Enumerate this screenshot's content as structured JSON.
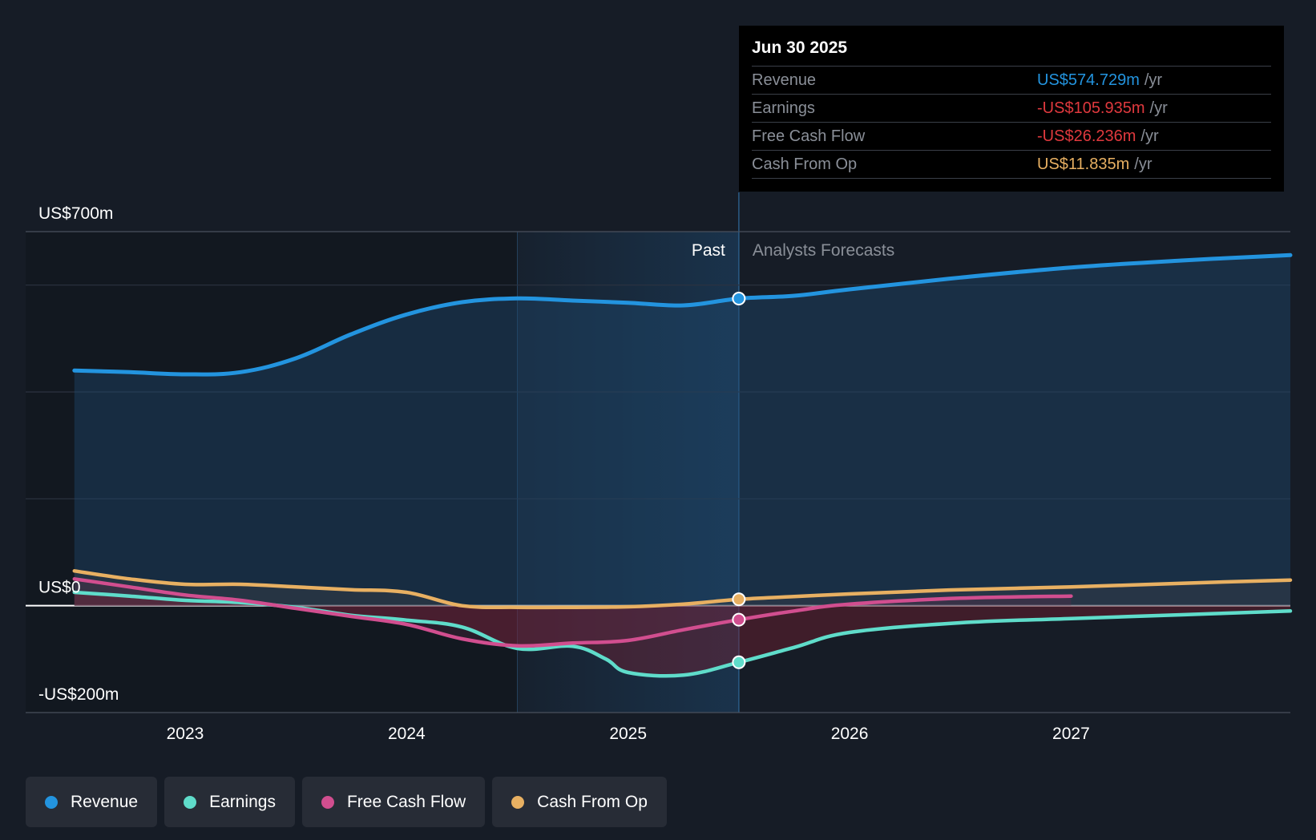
{
  "colors": {
    "revenue": "#2394df",
    "earnings": "#5fdcca",
    "fcf": "#d14e8f",
    "cfo": "#e8b062",
    "grid": "#2c3340",
    "zero": "#ffffff",
    "past_shade": "#1e4f7a"
  },
  "tooltip": {
    "date": "Jun 30 2025",
    "rows": [
      {
        "label": "Revenue",
        "value": "US$574.729m",
        "unit": "/yr",
        "color": "#2394df"
      },
      {
        "label": "Earnings",
        "value": "-US$105.935m",
        "unit": "/yr",
        "color": "#e0393e"
      },
      {
        "label": "Free Cash Flow",
        "value": "-US$26.236m",
        "unit": "/yr",
        "color": "#e0393e"
      },
      {
        "label": "Cash From Op",
        "value": "US$11.835m",
        "unit": "/yr",
        "color": "#e8b062"
      }
    ]
  },
  "legend": {
    "items": [
      {
        "label": "Revenue",
        "color": "#2394df"
      },
      {
        "label": "Earnings",
        "color": "#5fdcca"
      },
      {
        "label": "Free Cash Flow",
        "color": "#d14e8f"
      },
      {
        "label": "Cash From Op",
        "color": "#e8b062"
      }
    ]
  },
  "chart_data": {
    "type": "line",
    "title": "",
    "xlabel": "",
    "ylabel": "",
    "xlim": [
      2022.28,
      2027.99
    ],
    "ylim": [
      -200,
      700
    ],
    "y_tick_labels": [
      {
        "value": 700,
        "label": "US$700m"
      },
      {
        "value": 0,
        "label": "US$0"
      },
      {
        "value": -200,
        "label": "-US$200m"
      }
    ],
    "gridlines": [
      700,
      600,
      400,
      200,
      0,
      -200
    ],
    "x_ticks": [
      {
        "value": 2023,
        "label": "2023"
      },
      {
        "value": 2024,
        "label": "2024"
      },
      {
        "value": 2025,
        "label": "2025"
      },
      {
        "value": 2026,
        "label": "2026"
      },
      {
        "value": 2027,
        "label": "2027"
      }
    ],
    "past_label": "Past",
    "forecast_label": "Analysts Forecasts",
    "past_start": 2024.5,
    "divider": 2025.5,
    "marker_x": 2025.5,
    "series": [
      {
        "name": "Revenue",
        "key": "revenue",
        "color": "#2394df",
        "x": [
          2022.5,
          2022.75,
          2023.0,
          2023.25,
          2023.5,
          2023.75,
          2024.0,
          2024.25,
          2024.5,
          2024.75,
          2025.0,
          2025.25,
          2025.5,
          2025.75,
          2026.0,
          2026.5,
          2027.0,
          2027.5,
          2027.99
        ],
        "values": [
          440,
          437,
          433,
          437,
          463,
          508,
          545,
          568,
          575,
          571,
          567,
          562,
          574.729,
          580,
          592,
          614,
          633,
          646,
          656
        ]
      },
      {
        "name": "Earnings",
        "key": "earnings",
        "color": "#5fdcca",
        "x": [
          2022.5,
          2022.75,
          2023.0,
          2023.25,
          2023.5,
          2023.75,
          2024.0,
          2024.25,
          2024.5,
          2024.75,
          2024.9,
          2025.0,
          2025.25,
          2025.5,
          2025.75,
          2026.0,
          2026.5,
          2027.0,
          2027.5,
          2027.99
        ],
        "values": [
          25,
          18,
          10,
          6,
          -3,
          -18,
          -27,
          -40,
          -80,
          -76,
          -100,
          -125,
          -130,
          -105.935,
          -78,
          -50,
          -32,
          -24,
          -17,
          -10
        ]
      },
      {
        "name": "Free Cash Flow",
        "key": "fcf",
        "color": "#d14e8f",
        "x": [
          2022.5,
          2022.75,
          2023.0,
          2023.25,
          2023.5,
          2023.75,
          2024.0,
          2024.25,
          2024.5,
          2024.75,
          2025.0,
          2025.25,
          2025.5,
          2025.75,
          2026.0,
          2026.5,
          2027.0
        ],
        "values": [
          50,
          35,
          20,
          10,
          -5,
          -20,
          -35,
          -62,
          -75,
          -70,
          -65,
          -45,
          -26.236,
          -10,
          3,
          14,
          18
        ]
      },
      {
        "name": "Cash From Op",
        "key": "cfo",
        "color": "#e8b062",
        "x": [
          2022.5,
          2022.75,
          2023.0,
          2023.25,
          2023.5,
          2023.75,
          2024.0,
          2024.25,
          2024.5,
          2024.75,
          2025.0,
          2025.25,
          2025.5,
          2025.75,
          2026.0,
          2026.5,
          2027.0,
          2027.5,
          2027.99
        ],
        "values": [
          65,
          50,
          40,
          40,
          35,
          30,
          25,
          0,
          -3,
          -3,
          -2,
          3,
          11.835,
          17,
          22,
          30,
          35,
          42,
          48
        ]
      }
    ]
  }
}
